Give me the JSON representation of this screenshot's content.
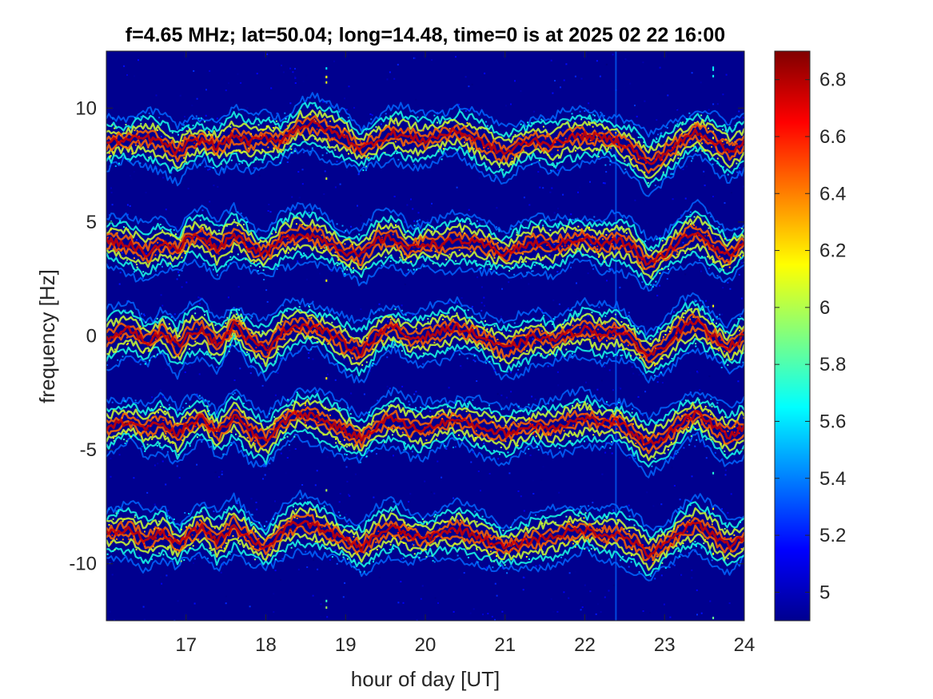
{
  "chart_data": {
    "type": "heatmap",
    "title": "f=4.65 MHz;  lat=50.04; long=14.48, time=0 is at 2025 02 22 16:00",
    "xlabel": "hour of day [UT]",
    "ylabel": "frequency [Hz]",
    "xlim": [
      16,
      24
    ],
    "ylim": [
      -12.5,
      12.5
    ],
    "xticks": [
      17,
      18,
      19,
      20,
      21,
      22,
      23,
      24
    ],
    "xtick_labels": [
      "17",
      "18",
      "19",
      "20",
      "21",
      "22",
      "23",
      "24"
    ],
    "yticks": [
      10,
      5,
      0,
      -5,
      -10
    ],
    "ytick_labels": [
      "10",
      "5",
      "0",
      "-5",
      "-10"
    ],
    "colorbar": {
      "colormap": "jet",
      "clim": [
        4.9,
        6.9
      ],
      "ticks": [
        6.8,
        6.6,
        6.4,
        6.2,
        6,
        5.8,
        5.6,
        5.4,
        5.2,
        5
      ],
      "tick_labels": [
        "6.8",
        "6.6",
        "6.4",
        "6.2",
        "6",
        "5.8",
        "5.6",
        "5.4",
        "5.2",
        "5"
      ]
    },
    "background_value": 4.95,
    "series": [
      {
        "center_hz": 8.5,
        "trace_x": [
          16.0,
          16.3,
          16.5,
          16.7,
          16.9,
          17.0,
          17.2,
          17.4,
          17.6,
          17.8,
          18.0,
          18.2,
          18.4,
          18.6,
          18.8,
          19.0,
          19.2,
          19.4,
          19.6,
          19.8,
          20.0,
          20.2,
          20.4,
          20.6,
          20.8,
          21.0,
          21.2,
          21.4,
          21.6,
          21.8,
          22.0,
          22.2,
          22.4,
          22.6,
          22.8,
          23.0,
          23.2,
          23.4,
          23.6,
          23.8,
          24.0
        ],
        "trace_y": [
          8.5,
          8.6,
          8.7,
          8.5,
          8.0,
          8.4,
          8.6,
          8.3,
          8.8,
          8.5,
          8.7,
          8.6,
          9.2,
          9.3,
          9.0,
          8.7,
          8.2,
          8.6,
          8.9,
          8.7,
          8.6,
          8.8,
          9.0,
          8.7,
          8.3,
          8.0,
          8.4,
          8.6,
          8.4,
          8.7,
          8.8,
          8.7,
          8.6,
          8.2,
          7.5,
          8.0,
          8.5,
          9.0,
          8.6,
          8.1,
          8.5
        ]
      },
      {
        "center_hz": 4.2,
        "trace_x": [
          16.0,
          16.3,
          16.5,
          16.7,
          16.9,
          17.0,
          17.2,
          17.4,
          17.6,
          17.8,
          18.0,
          18.2,
          18.4,
          18.6,
          18.8,
          19.0,
          19.2,
          19.4,
          19.6,
          19.8,
          20.0,
          20.2,
          20.4,
          20.6,
          20.8,
          21.0,
          21.2,
          21.4,
          21.6,
          21.8,
          22.0,
          22.2,
          22.4,
          22.6,
          22.8,
          23.0,
          23.2,
          23.4,
          23.6,
          23.8,
          24.0
        ],
        "trace_y": [
          4.2,
          4.0,
          3.6,
          4.1,
          3.7,
          4.3,
          4.4,
          3.8,
          4.5,
          3.9,
          3.6,
          4.2,
          4.5,
          4.4,
          4.1,
          3.7,
          3.5,
          4.2,
          4.3,
          3.8,
          4.1,
          4.0,
          4.2,
          4.1,
          3.9,
          3.6,
          3.9,
          4.1,
          3.9,
          4.2,
          4.3,
          4.0,
          4.2,
          3.9,
          3.1,
          3.6,
          4.2,
          4.6,
          4.0,
          3.5,
          4.1
        ]
      },
      {
        "center_hz": 0.0,
        "trace_x": [
          16.0,
          16.3,
          16.5,
          16.7,
          16.9,
          17.0,
          17.2,
          17.4,
          17.6,
          17.8,
          18.0,
          18.2,
          18.4,
          18.6,
          18.8,
          19.0,
          19.2,
          19.4,
          19.6,
          19.8,
          20.0,
          20.2,
          20.4,
          20.6,
          20.8,
          21.0,
          21.2,
          21.4,
          21.6,
          21.8,
          22.0,
          22.2,
          22.4,
          22.6,
          22.8,
          23.0,
          23.2,
          23.4,
          23.6,
          23.8,
          24.0
        ],
        "trace_y": [
          -0.1,
          0.3,
          -0.3,
          0.2,
          -0.5,
          0.1,
          0.3,
          -0.4,
          0.5,
          -0.2,
          -0.6,
          0.2,
          0.5,
          0.4,
          0.1,
          -0.4,
          -0.7,
          0.1,
          0.4,
          -0.1,
          0.0,
          0.2,
          0.4,
          0.1,
          -0.2,
          -0.6,
          -0.3,
          0.0,
          -0.2,
          0.1,
          0.3,
          0.1,
          0.2,
          -0.2,
          -0.9,
          -0.4,
          0.3,
          0.6,
          0.0,
          -0.5,
          0.0
        ]
      },
      {
        "center_hz": -4.0,
        "trace_x": [
          16.0,
          16.3,
          16.5,
          16.7,
          16.9,
          17.0,
          17.2,
          17.4,
          17.6,
          17.8,
          18.0,
          18.2,
          18.4,
          18.6,
          18.8,
          19.0,
          19.2,
          19.4,
          19.6,
          19.8,
          20.0,
          20.2,
          20.4,
          20.6,
          20.8,
          21.0,
          21.2,
          21.4,
          21.6,
          21.8,
          22.0,
          22.2,
          22.4,
          22.6,
          22.8,
          23.0,
          23.2,
          23.4,
          23.6,
          23.8,
          24.0
        ],
        "trace_y": [
          -4.0,
          -3.7,
          -4.1,
          -3.8,
          -4.4,
          -3.9,
          -3.6,
          -4.3,
          -3.5,
          -4.2,
          -4.6,
          -3.8,
          -3.4,
          -3.5,
          -3.8,
          -4.2,
          -4.5,
          -3.9,
          -3.6,
          -4.0,
          -4.1,
          -3.8,
          -3.7,
          -3.9,
          -4.1,
          -4.3,
          -4.1,
          -3.9,
          -4.0,
          -3.8,
          -3.6,
          -3.8,
          -3.8,
          -4.2,
          -4.8,
          -4.4,
          -3.8,
          -3.4,
          -3.9,
          -4.4,
          -4.0
        ]
      },
      {
        "center_hz": -8.8,
        "trace_x": [
          16.0,
          16.3,
          16.5,
          16.7,
          16.9,
          17.0,
          17.2,
          17.4,
          17.6,
          17.8,
          18.0,
          18.2,
          18.4,
          18.6,
          18.8,
          19.0,
          19.2,
          19.4,
          19.6,
          19.8,
          20.0,
          20.2,
          20.4,
          20.6,
          20.8,
          21.0,
          21.2,
          21.4,
          21.6,
          21.8,
          22.0,
          22.2,
          22.4,
          22.6,
          22.8,
          23.0,
          23.2,
          23.4,
          23.6,
          23.8,
          24.0
        ],
        "trace_y": [
          -8.7,
          -8.5,
          -9.0,
          -8.6,
          -9.2,
          -8.8,
          -8.4,
          -9.0,
          -8.3,
          -8.9,
          -9.3,
          -8.6,
          -8.2,
          -8.3,
          -8.6,
          -9.0,
          -9.3,
          -8.7,
          -8.4,
          -8.8,
          -8.9,
          -8.6,
          -8.5,
          -8.7,
          -9.0,
          -9.3,
          -9.1,
          -8.9,
          -8.8,
          -8.6,
          -8.5,
          -8.7,
          -8.7,
          -9.0,
          -9.6,
          -9.2,
          -8.6,
          -8.2,
          -8.7,
          -9.2,
          -8.8
        ]
      }
    ],
    "noise_features": [
      {
        "x": 22.38,
        "kind": "vertical-streak"
      },
      {
        "x": 18.75,
        "kind": "sparse-dots"
      },
      {
        "x": 23.6,
        "kind": "sparse-dots"
      }
    ]
  }
}
